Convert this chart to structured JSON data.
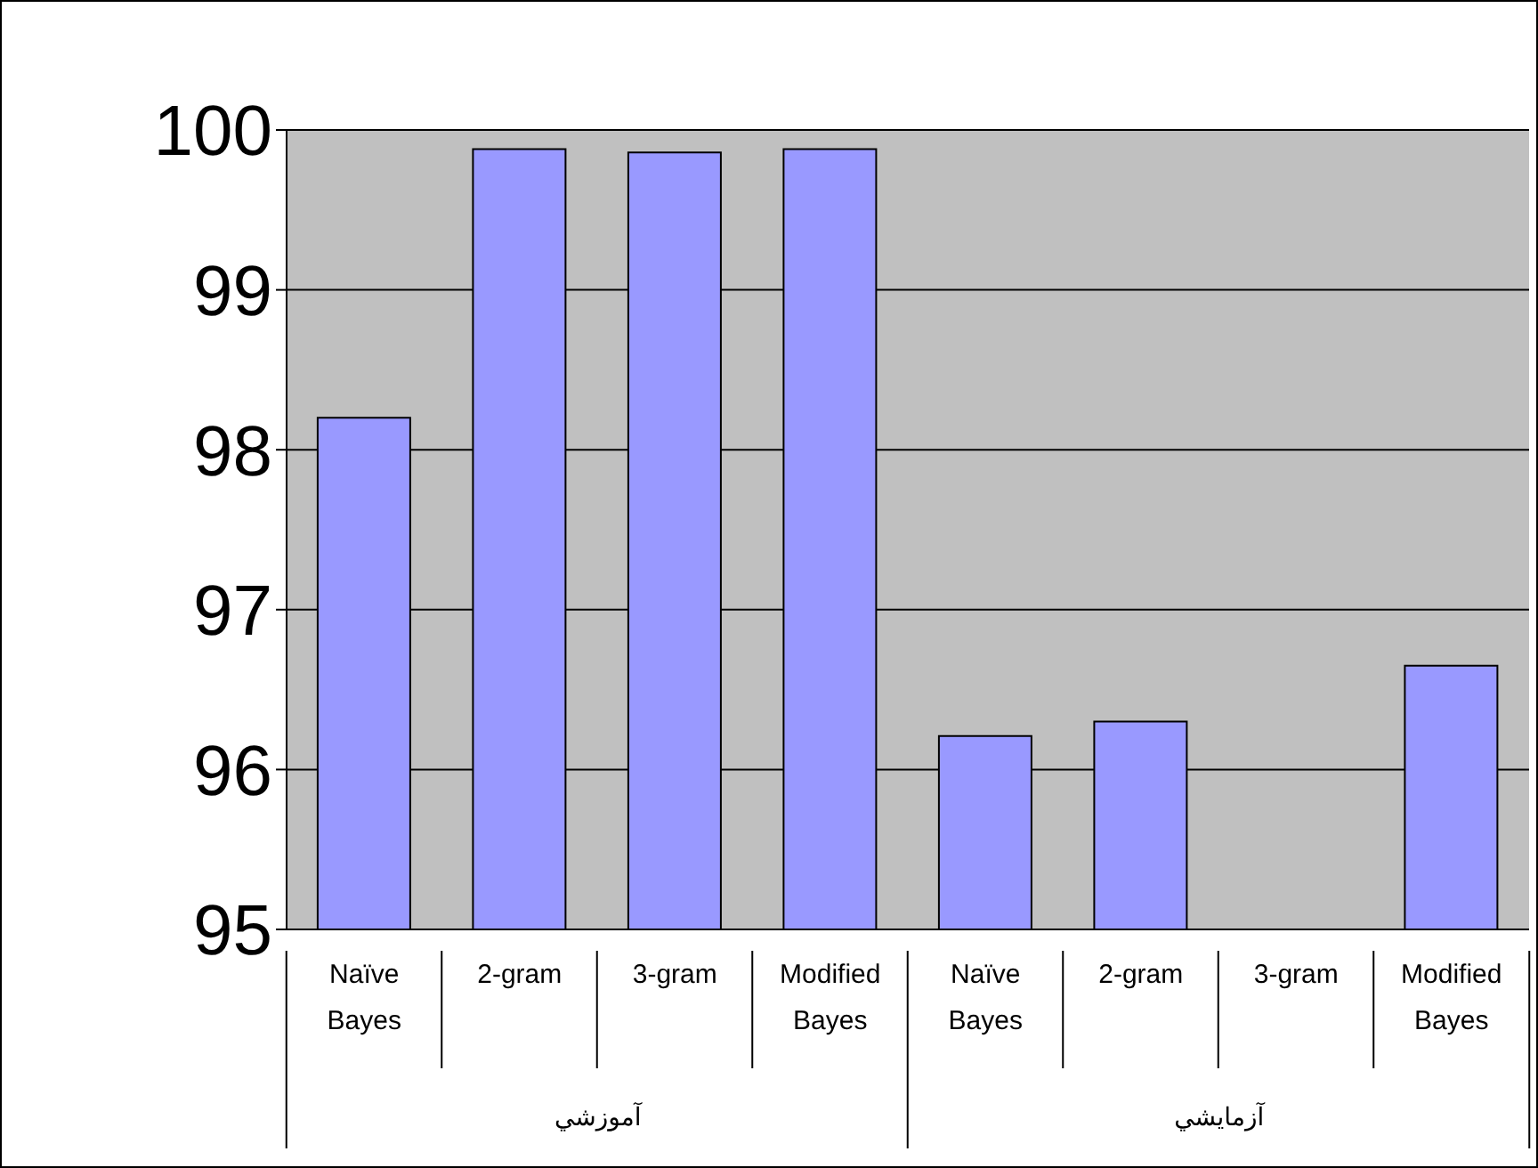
{
  "chart_data": {
    "type": "bar",
    "categories": [
      "Naïve Bayes",
      "2-gram",
      "3-gram",
      "Modified Bayes",
      "Naïve Bayes",
      "2-gram",
      "3-gram",
      "Modified Bayes"
    ],
    "values": [
      98.2,
      99.88,
      99.86,
      99.88,
      96.21,
      96.3,
      null,
      96.65
    ],
    "color": "#9999ff",
    "annotations": [
      "آموزشي",
      "آزمايشي"
    ],
    "ylim": [
      95,
      100
    ],
    "yticks": [
      95,
      96,
      97,
      98,
      99,
      100
    ],
    "grid": "y"
  }
}
